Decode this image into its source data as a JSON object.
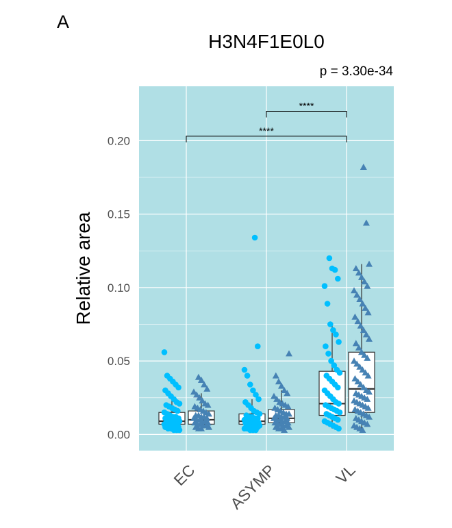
{
  "panel_label": "A",
  "chart_data": {
    "type": "box",
    "title": "H3N4F1E0L0",
    "subtitle": "p = 3.30e-34",
    "xlabel": "",
    "ylabel": "Relative area",
    "categories": [
      "EC",
      "ASYMP",
      "VL"
    ],
    "ylim": [
      -0.011,
      0.237
    ],
    "yticks": [
      "0.00",
      "0.05",
      "0.10",
      "0.15",
      "0.20"
    ],
    "grid": true,
    "background": "#b0dfe5",
    "legend": "none",
    "series": [
      {
        "color": "#00bfff",
        "marker": "circle",
        "box": [
          {
            "low": 0.002,
            "q1": 0.007,
            "median": 0.009,
            "q3": 0.015,
            "high": 0.026
          },
          {
            "low": 0.002,
            "q1": 0.007,
            "median": 0.009,
            "q3": 0.014,
            "high": 0.024
          },
          {
            "low": 0.004,
            "q1": 0.013,
            "median": 0.021,
            "q3": 0.043,
            "high": 0.075
          }
        ],
        "points": [
          [
            0.056,
            0.04,
            0.038,
            0.036,
            0.034,
            0.032,
            0.03,
            0.028,
            0.026,
            0.024,
            0.022,
            0.021,
            0.02,
            0.019,
            0.018,
            0.017,
            0.016,
            0.015,
            0.014,
            0.013,
            0.012,
            0.012,
            0.011,
            0.011,
            0.01,
            0.01,
            0.009,
            0.009,
            0.009,
            0.008,
            0.008,
            0.008,
            0.007,
            0.007,
            0.007,
            0.006,
            0.006,
            0.006,
            0.005,
            0.005,
            0.005,
            0.004,
            0.004,
            0.003,
            0.003,
            0.003
          ],
          [
            0.134,
            0.06,
            0.044,
            0.04,
            0.034,
            0.03,
            0.027,
            0.024,
            0.022,
            0.02,
            0.018,
            0.016,
            0.015,
            0.014,
            0.013,
            0.012,
            0.012,
            0.011,
            0.011,
            0.01,
            0.01,
            0.009,
            0.009,
            0.009,
            0.008,
            0.008,
            0.008,
            0.007,
            0.007,
            0.007,
            0.006,
            0.006,
            0.006,
            0.005,
            0.005,
            0.005,
            0.004,
            0.004,
            0.003,
            0.003,
            0.003
          ],
          [
            0.12,
            0.113,
            0.112,
            0.106,
            0.101,
            0.089,
            0.075,
            0.071,
            0.068,
            0.063,
            0.06,
            0.055,
            0.05,
            0.047,
            0.044,
            0.042,
            0.04,
            0.038,
            0.036,
            0.034,
            0.032,
            0.03,
            0.028,
            0.026,
            0.024,
            0.022,
            0.021,
            0.02,
            0.019,
            0.018,
            0.017,
            0.016,
            0.015,
            0.014,
            0.013,
            0.012,
            0.011,
            0.01,
            0.009,
            0.008,
            0.007,
            0.006,
            0.005,
            0.004
          ]
        ]
      },
      {
        "color": "#4682b4",
        "marker": "triangle",
        "box": [
          {
            "low": 0.003,
            "q1": 0.007,
            "median": 0.01,
            "q3": 0.016,
            "high": 0.028
          },
          {
            "low": 0.003,
            "q1": 0.008,
            "median": 0.011,
            "q3": 0.017,
            "high": 0.03
          },
          {
            "low": 0.003,
            "q1": 0.015,
            "median": 0.031,
            "q3": 0.056,
            "high": 0.116
          }
        ],
        "points": [
          [
            0.039,
            0.037,
            0.034,
            0.031,
            0.029,
            0.027,
            0.025,
            0.023,
            0.021,
            0.02,
            0.019,
            0.018,
            0.017,
            0.016,
            0.015,
            0.014,
            0.013,
            0.013,
            0.012,
            0.012,
            0.011,
            0.011,
            0.01,
            0.01,
            0.009,
            0.009,
            0.008,
            0.008,
            0.007,
            0.007,
            0.006,
            0.006,
            0.005,
            0.005,
            0.004,
            0.004
          ],
          [
            0.055,
            0.04,
            0.036,
            0.033,
            0.03,
            0.028,
            0.026,
            0.024,
            0.022,
            0.021,
            0.02,
            0.019,
            0.018,
            0.017,
            0.016,
            0.015,
            0.014,
            0.014,
            0.013,
            0.013,
            0.012,
            0.012,
            0.011,
            0.011,
            0.01,
            0.01,
            0.009,
            0.009,
            0.008,
            0.008,
            0.007,
            0.007,
            0.006,
            0.006,
            0.005,
            0.005,
            0.004,
            0.004,
            0.003
          ],
          [
            0.182,
            0.144,
            0.116,
            0.113,
            0.11,
            0.107,
            0.104,
            0.101,
            0.098,
            0.095,
            0.092,
            0.089,
            0.086,
            0.083,
            0.08,
            0.077,
            0.074,
            0.071,
            0.068,
            0.065,
            0.062,
            0.059,
            0.056,
            0.054,
            0.052,
            0.05,
            0.048,
            0.046,
            0.044,
            0.042,
            0.04,
            0.038,
            0.036,
            0.034,
            0.032,
            0.03,
            0.029,
            0.028,
            0.027,
            0.026,
            0.025,
            0.024,
            0.023,
            0.022,
            0.021,
            0.02,
            0.019,
            0.018,
            0.017,
            0.016,
            0.015,
            0.014,
            0.013,
            0.012,
            0.011,
            0.01,
            0.009,
            0.008,
            0.007,
            0.006,
            0.005,
            0.004,
            0.003
          ]
        ]
      }
    ],
    "comparisons": [
      {
        "from": "ASYMP",
        "to": "VL",
        "y": 0.22,
        "label": "****"
      },
      {
        "from": "EC",
        "to": "VL",
        "y": 0.203,
        "label": "****"
      }
    ]
  }
}
